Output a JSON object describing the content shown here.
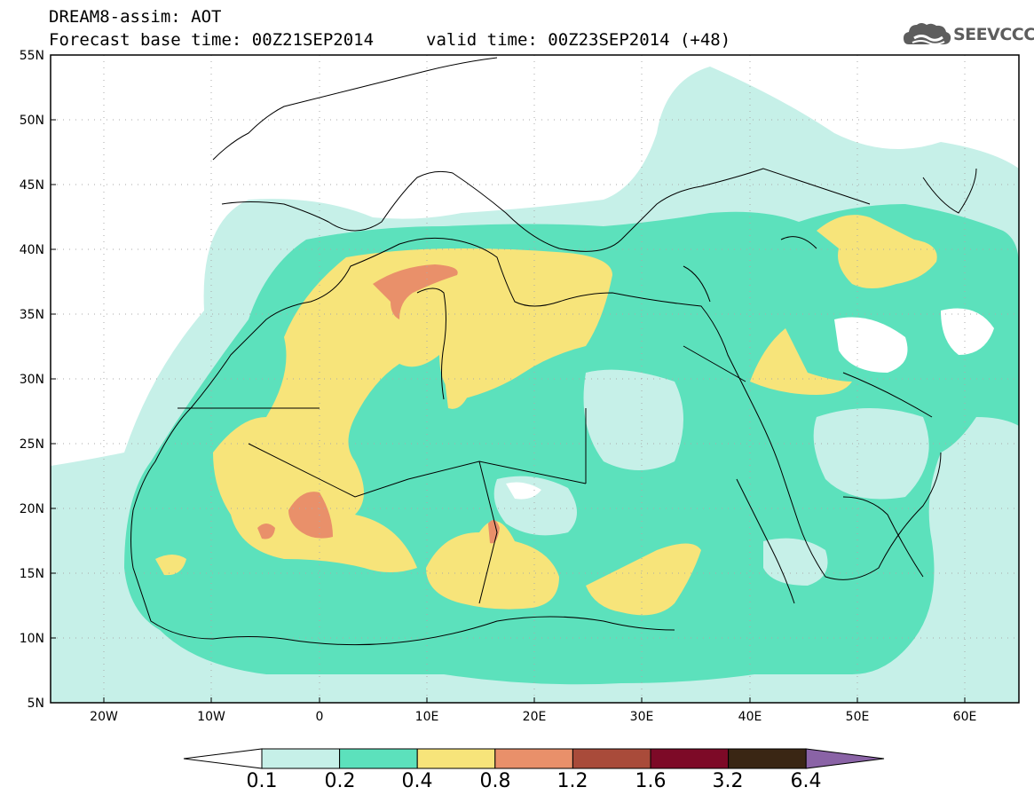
{
  "title": {
    "line1": "DREAM8-assim: AOT",
    "line2_base": "Forecast base time: 00Z21SEP2014",
    "line2_valid": "valid time: 00Z23SEP2014 (+48)"
  },
  "logo": {
    "text": "SEEVCCC",
    "icon": "cloud-icon",
    "color": "#5d5d5d"
  },
  "map": {
    "projection": "equirectangular",
    "lon_range": [
      -25,
      65
    ],
    "lat_range": [
      5,
      55
    ],
    "grid": "dotted",
    "lat_labels": [
      "55N",
      "50N",
      "45N",
      "40N",
      "35N",
      "30N",
      "25N",
      "20N",
      "15N",
      "10N",
      "5N"
    ],
    "lon_labels": [
      "20W",
      "10W",
      "0",
      "10E",
      "20E",
      "30E",
      "40E",
      "50E",
      "60E"
    ],
    "variable": "AOT"
  },
  "colorbar": {
    "labels": [
      "0.1",
      "0.2",
      "0.4",
      "0.8",
      "1.2",
      "1.6",
      "3.2",
      "6.4"
    ],
    "colors": [
      "#ffffff",
      "#c6f0e8",
      "#5ce1bc",
      "#f7e47a",
      "#e9906a",
      "#a94b3a",
      "#7d0a27",
      "#3a2614",
      "#8a63a6"
    ]
  }
}
